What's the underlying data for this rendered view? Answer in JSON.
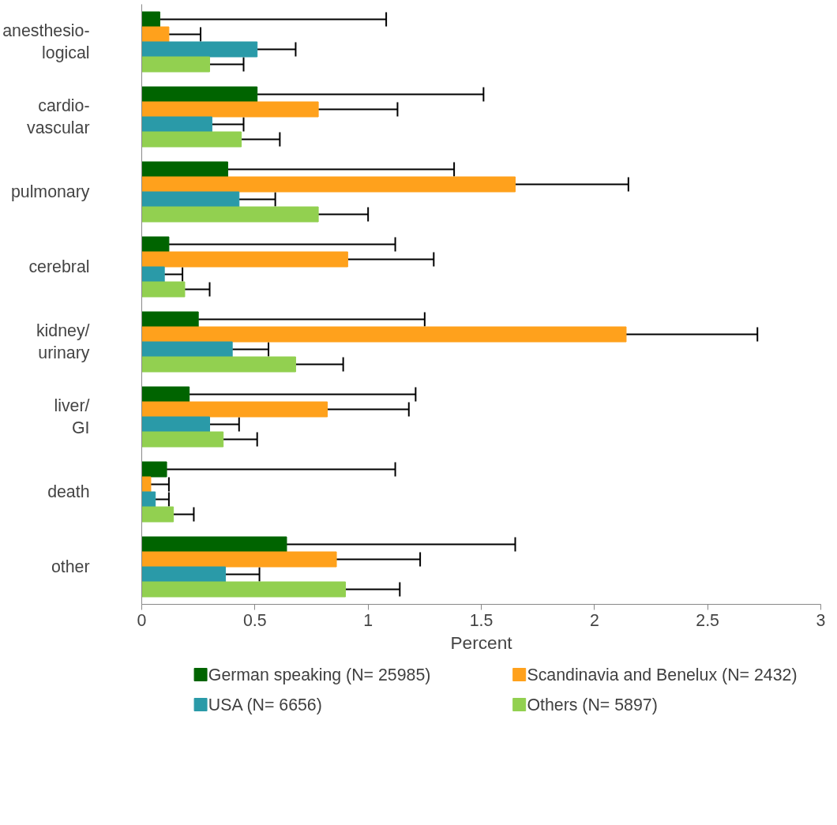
{
  "chart_data": {
    "type": "bar",
    "orientation": "horizontal",
    "xlabel": "Percent",
    "categories": [
      "anesthesio-\nlogical",
      "cardio-\nvascular",
      "pulmonary",
      "cerebral",
      "kidney/\nurinary",
      "liver/\nGI",
      "death",
      "other"
    ],
    "series": [
      {
        "name": "German speaking (N= 25985)",
        "color": "#006400",
        "values": [
          0.08,
          0.51,
          0.38,
          0.12,
          0.25,
          0.21,
          0.11,
          0.64
        ],
        "errors": [
          [
            0.08,
            1.08
          ],
          [
            0.51,
            1.51
          ],
          [
            0.38,
            1.38
          ],
          [
            0.12,
            1.12
          ],
          [
            0.25,
            1.25
          ],
          [
            0.21,
            1.21
          ],
          [
            0.11,
            1.12
          ],
          [
            0.64,
            1.65
          ]
        ]
      },
      {
        "name": "Scandinavia and Benelux (N= 2432)",
        "color": "#ffa11c",
        "values": [
          0.12,
          0.78,
          1.65,
          0.91,
          2.14,
          0.82,
          0.04,
          0.86
        ],
        "errors": [
          [
            0.12,
            0.26
          ],
          [
            0.78,
            1.13
          ],
          [
            1.65,
            2.15
          ],
          [
            0.91,
            1.29
          ],
          [
            2.14,
            2.72
          ],
          [
            0.82,
            1.18
          ],
          [
            0.04,
            0.12
          ],
          [
            0.86,
            1.23
          ]
        ]
      },
      {
        "name": "USA (N= 6656)",
        "color": "#2a9aa8",
        "values": [
          0.51,
          0.31,
          0.43,
          0.1,
          0.4,
          0.3,
          0.06,
          0.37
        ],
        "errors": [
          [
            0.51,
            0.68
          ],
          [
            0.31,
            0.45
          ],
          [
            0.43,
            0.59
          ],
          [
            0.1,
            0.18
          ],
          [
            0.4,
            0.56
          ],
          [
            0.3,
            0.43
          ],
          [
            0.06,
            0.12
          ],
          [
            0.37,
            0.52
          ]
        ]
      },
      {
        "name": "Others (N= 5897)",
        "color": "#92d050",
        "values": [
          0.3,
          0.44,
          0.78,
          0.19,
          0.68,
          0.36,
          0.14,
          0.9
        ],
        "errors": [
          [
            0.3,
            0.45
          ],
          [
            0.44,
            0.61
          ],
          [
            0.78,
            1.0
          ],
          [
            0.19,
            0.3
          ],
          [
            0.68,
            0.89
          ],
          [
            0.36,
            0.51
          ],
          [
            0.14,
            0.23
          ],
          [
            0.9,
            1.14
          ]
        ]
      }
    ],
    "xlim": [
      0,
      3
    ],
    "xticks": [
      0,
      0.5,
      1,
      1.5,
      2,
      2.5,
      3
    ],
    "grid": false,
    "legend": "bottom"
  }
}
